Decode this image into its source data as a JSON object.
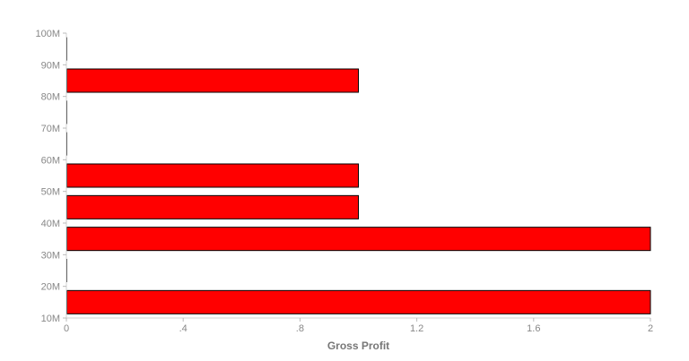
{
  "chart_data": {
    "type": "bar",
    "orientation": "horizontal",
    "categories": [
      "10M",
      "20M",
      "30M",
      "40M",
      "50M",
      "60M",
      "70M",
      "80M",
      "90M"
    ],
    "values": [
      2,
      0,
      2,
      1,
      1,
      0,
      0,
      1,
      0
    ],
    "title": "",
    "xlabel": "Gross Profit",
    "ylabel": "",
    "xlim": [
      0,
      2
    ],
    "xticks": [
      "0",
      ".4",
      ".8",
      "1.2",
      "1.6",
      "2"
    ],
    "yticks": [
      "10M",
      "20M",
      "30M",
      "40M",
      "50M",
      "60M",
      "70M",
      "80M",
      "90M",
      "100M"
    ],
    "grid": false,
    "bar_color": "#ff0000",
    "bar_edge_color": "#000000"
  }
}
